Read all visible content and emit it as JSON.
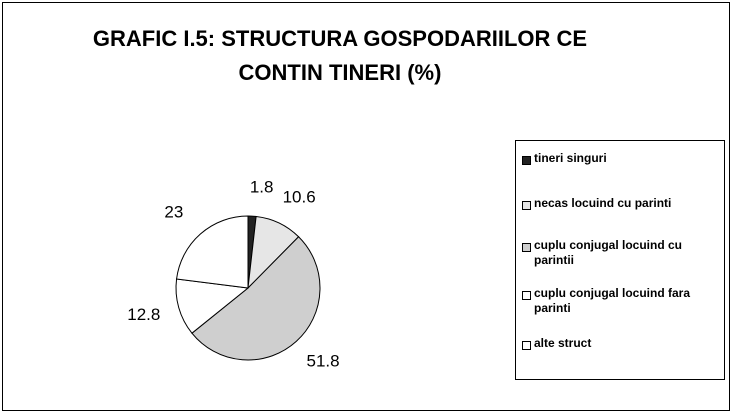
{
  "chart_data": {
    "type": "pie",
    "title": "GRAFIC I.5: STRUCTURA GOSPODARIILOR CE CONTIN TINERI (%)",
    "categories": [
      "tineri singuri",
      "necas locuind cu parinti",
      "cuplu conjugal locuind cu parintii",
      "cuplu conjugal locuind fara parinti",
      "alte struct"
    ],
    "values": [
      1.8,
      10.6,
      51.8,
      12.8,
      23
    ],
    "colors": [
      "#222222",
      "#e6e6e6",
      "#cfcfcf",
      "#ffffff",
      "#ffffff"
    ],
    "legend": "right"
  }
}
